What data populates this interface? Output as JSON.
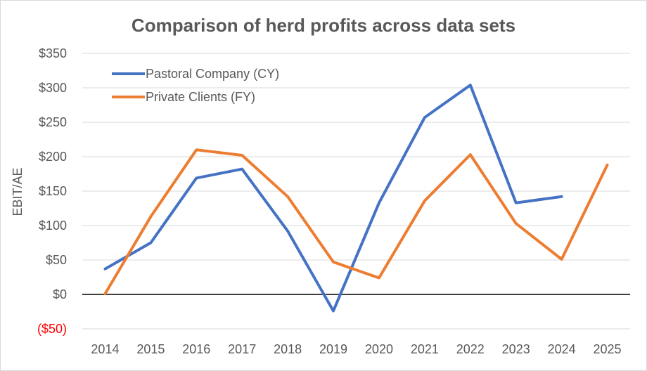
{
  "chart_data": {
    "type": "line",
    "title": "Comparison of herd profits across data sets",
    "ylabel": "EBIT/AE",
    "xlabel": "",
    "ylim": [
      -50,
      350
    ],
    "yticks": [
      -50,
      0,
      50,
      100,
      150,
      200,
      250,
      300,
      350
    ],
    "ytick_labels": [
      "($50)",
      "$0",
      "$50",
      "$100",
      "$150",
      "$200",
      "$250",
      "$300",
      "$350"
    ],
    "negative_tick_color": "#ff0000",
    "categories": [
      "2014",
      "2015",
      "2016",
      "2017",
      "2018",
      "2019",
      "2020",
      "2021",
      "2022",
      "2023",
      "2024",
      "2025"
    ],
    "grid": true,
    "legend_position": "top-left",
    "series": [
      {
        "name": "Pastoral Company (CY)",
        "color": "#4472c4",
        "values": [
          37,
          75,
          169,
          182,
          92,
          -24,
          133,
          257,
          304,
          133,
          142,
          null
        ]
      },
      {
        "name": "Private Clients (FY)",
        "color": "#ed7d31",
        "values": [
          1,
          113,
          210,
          202,
          142,
          47,
          24,
          136,
          203,
          103,
          51,
          188
        ]
      }
    ]
  }
}
